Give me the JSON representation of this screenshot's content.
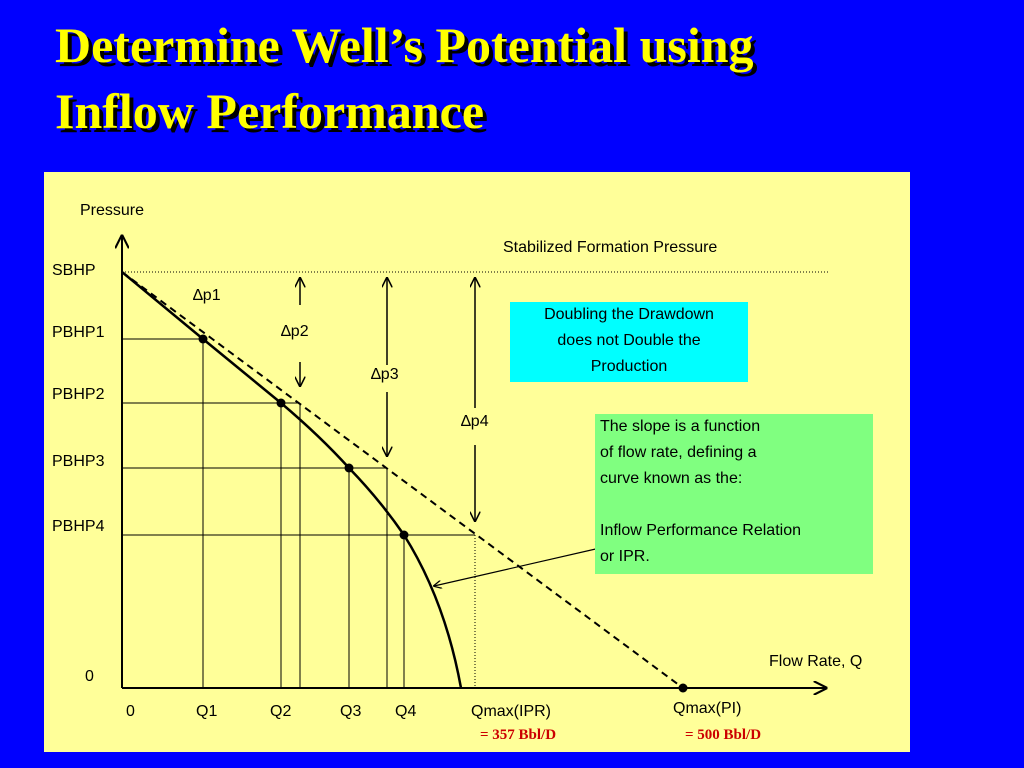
{
  "title_line1": "Determine Well’s Potential using",
  "title_line2": "Inflow Performance",
  "axis": {
    "y_label": "Pressure",
    "x_label": "Flow Rate, Q",
    "y_zero": "0",
    "x_zero": "0"
  },
  "pressure_labels": [
    "SBHP",
    "PBHP1",
    "PBHP2",
    "PBHP3",
    "PBHP4"
  ],
  "rate_labels": [
    "Q1",
    "Q2",
    "Q3",
    "Q4"
  ],
  "qmax_ipr": "Qmax(IPR)",
  "qmax_pi": "Qmax(PI)",
  "qmax_ipr_value": "= 357 Bbl/D",
  "qmax_pi_value": "= 500 Bbl/D",
  "formation_pressure": "Stabilized Formation Pressure",
  "drawdowns": [
    "∆p1",
    "∆p2",
    "∆p3",
    "∆p4"
  ],
  "note_drawdown": [
    "Doubling the Drawdown",
    "does not Double the",
    "Production"
  ],
  "note_ipr": [
    "The slope is a function",
    "of flow rate, defining a",
    "curve known as the:",
    "",
    "Inflow Performance Relation",
    "or IPR."
  ],
  "colors": {
    "background": "#0000ff",
    "title": "#ffff00",
    "panel": "#ffff99",
    "note_drawdown": "#00ffff",
    "note_ipr": "#80ff80",
    "value_text": "#cc0000"
  }
}
